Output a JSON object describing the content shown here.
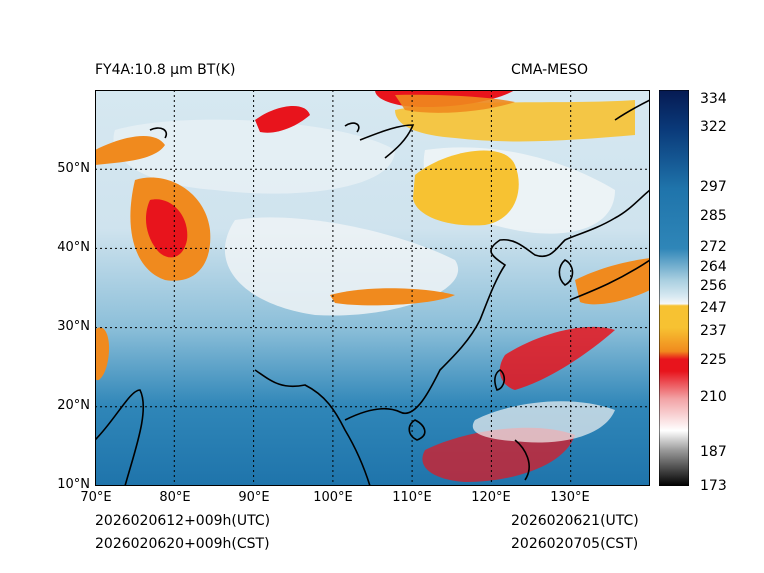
{
  "title_left": "FY4A:10.8 µm BT(K)",
  "title_right": "CMA-MESO",
  "footer": {
    "init_utc": "2026020612+009h(UTC)",
    "init_cst": "2026020620+009h(CST)",
    "valid_utc": "2026020621(UTC)",
    "valid_cst": "2026020705(CST)"
  },
  "map": {
    "lon_range": [
      70,
      140
    ],
    "lat_range": [
      10,
      60
    ],
    "lon_ticks": [
      "70°E",
      "80°E",
      "90°E",
      "100°E",
      "110°E",
      "120°E",
      "130°E"
    ],
    "lat_ticks": [
      "10°N",
      "20°N",
      "30°N",
      "40°N",
      "50°N"
    ]
  },
  "colorbar": {
    "min": 173,
    "max": 338,
    "ticks": [
      334,
      322,
      297,
      285,
      272,
      264,
      256,
      247,
      237,
      225,
      210,
      187,
      173
    ],
    "colors": {
      "deep_cold": "#000000",
      "gray": "#9a9a9a",
      "red": "#e8141c",
      "orange": "#f08a1e",
      "yellow": "#f7c232",
      "white": "#f5f7f8",
      "light_blue": "#a9cfe0",
      "mid_blue": "#2f86b8",
      "navy": "#061a52"
    }
  }
}
